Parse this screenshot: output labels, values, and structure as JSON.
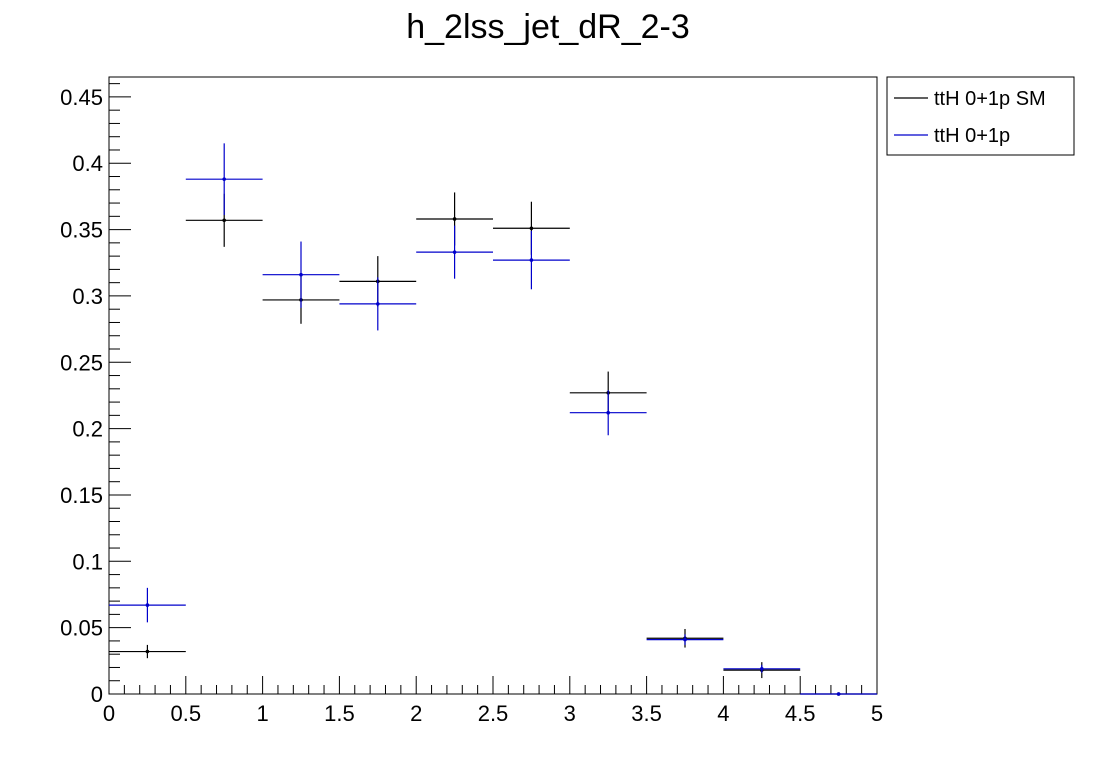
{
  "chart_data": {
    "type": "scatter",
    "title": "h_2lss_jet_dR_2-3",
    "xlabel": "",
    "ylabel": "",
    "xlim": [
      0,
      5
    ],
    "ylim": [
      0,
      0.465
    ],
    "grid": false,
    "legend_position": "top-right outside",
    "x_ticks": [
      0,
      0.5,
      1,
      1.5,
      2,
      2.5,
      3,
      3.5,
      4,
      4.5,
      5
    ],
    "x_tick_labels": [
      "0",
      "0.5",
      "1",
      "1.5",
      "2",
      "2.5",
      "3",
      "3.5",
      "4",
      "4.5",
      "5"
    ],
    "y_ticks": [
      0,
      0.05,
      0.1,
      0.15,
      0.2,
      0.25,
      0.3,
      0.35,
      0.4,
      0.45
    ],
    "y_tick_labels": [
      "0",
      "0.05",
      "0.1",
      "0.15",
      "0.2",
      "0.25",
      "0.3",
      "0.35",
      "0.4",
      "0.45"
    ],
    "bin_edges": [
      0,
      0.5,
      1,
      1.5,
      2,
      2.5,
      3,
      3.5,
      4,
      4.5,
      5
    ],
    "series": [
      {
        "name": "ttH 0+1p SM",
        "color": "#000000",
        "x": [
          0.25,
          0.75,
          1.25,
          1.75,
          2.25,
          2.75,
          3.25,
          3.75,
          4.25,
          4.75
        ],
        "values": [
          0.032,
          0.357,
          0.297,
          0.311,
          0.358,
          0.351,
          0.227,
          0.042,
          0.018,
          0.0
        ],
        "errors": [
          0.005,
          0.02,
          0.018,
          0.019,
          0.02,
          0.02,
          0.016,
          0.007,
          0.006,
          0.0
        ]
      },
      {
        "name": "ttH 0+1p",
        "color": "#0000cc",
        "x": [
          0.25,
          0.75,
          1.25,
          1.75,
          2.25,
          2.75,
          3.25,
          3.75,
          4.25,
          4.75
        ],
        "values": [
          0.067,
          0.388,
          0.316,
          0.294,
          0.333,
          0.327,
          0.212,
          0.041,
          0.019,
          0.0
        ],
        "errors": [
          0.013,
          0.027,
          0.025,
          0.02,
          0.02,
          0.022,
          0.017,
          0.004,
          0.003,
          0.0
        ]
      }
    ]
  }
}
